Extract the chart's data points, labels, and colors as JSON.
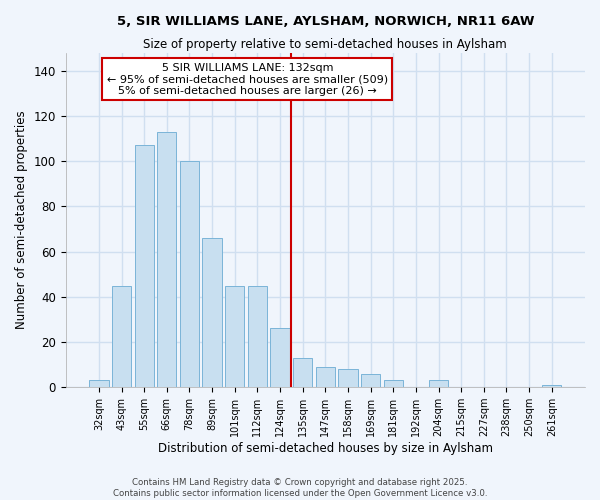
{
  "title": "5, SIR WILLIAMS LANE, AYLSHAM, NORWICH, NR11 6AW",
  "subtitle": "Size of property relative to semi-detached houses in Aylsham",
  "xlabel": "Distribution of semi-detached houses by size in Aylsham",
  "ylabel": "Number of semi-detached properties",
  "bar_color": "#c8dff0",
  "bar_edge_color": "#7ab4d8",
  "categories": [
    "32sqm",
    "43sqm",
    "55sqm",
    "66sqm",
    "78sqm",
    "89sqm",
    "101sqm",
    "112sqm",
    "124sqm",
    "135sqm",
    "147sqm",
    "158sqm",
    "169sqm",
    "181sqm",
    "192sqm",
    "204sqm",
    "215sqm",
    "227sqm",
    "238sqm",
    "250sqm",
    "261sqm"
  ],
  "values": [
    3,
    45,
    107,
    113,
    100,
    66,
    45,
    45,
    26,
    13,
    9,
    8,
    6,
    3,
    0,
    3,
    0,
    0,
    0,
    0,
    1
  ],
  "ylim": [
    0,
    148
  ],
  "yticks": [
    0,
    20,
    40,
    60,
    80,
    100,
    120,
    140
  ],
  "redline_x": 8.5,
  "annotation_title": "5 SIR WILLIAMS LANE: 132sqm",
  "annotation_line1": "← 95% of semi-detached houses are smaller (509)",
  "annotation_line2": "5% of semi-detached houses are larger (26) →",
  "annotation_box_color": "#ffffff",
  "annotation_box_edge_color": "#cc0000",
  "redline_color": "#cc0000",
  "footer1": "Contains HM Land Registry data © Crown copyright and database right 2025.",
  "footer2": "Contains public sector information licensed under the Open Government Licence v3.0.",
  "background_color": "#f0f5fc",
  "grid_color": "#d0dff0"
}
